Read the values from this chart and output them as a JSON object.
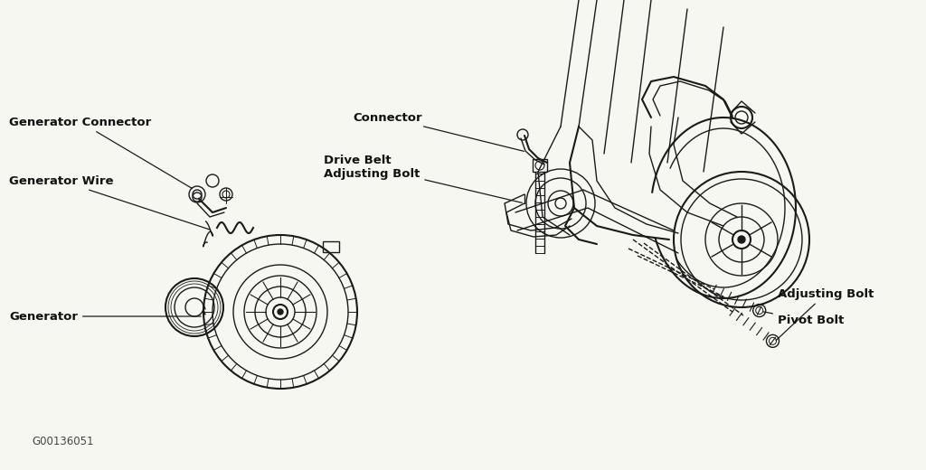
{
  "bg_color": "#f7f7f2",
  "line_color": "#1a1a1a",
  "label_color": "#111111",
  "labels": {
    "connector": "Connector",
    "drive_belt": "Drive Belt\nAdjusting Bolt",
    "gen_connector": "Generator Connector",
    "gen_wire": "Generator Wire",
    "generator": "Generator",
    "adj_bolt": "Adjusting Bolt",
    "pivot_bolt": "Pivot Bolt",
    "diagram_id": "G00136051"
  },
  "figsize": [
    10.24,
    5.2
  ],
  "dpi": 100
}
